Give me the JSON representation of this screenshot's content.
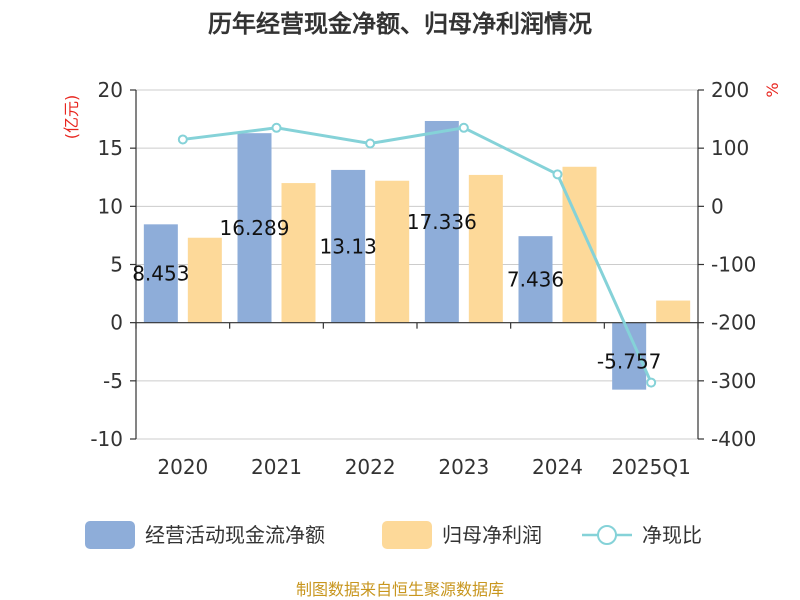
{
  "chart_data": {
    "type": "bar",
    "title": "历年经营现金净额、归母净利润情况",
    "categories": [
      "2020",
      "2021",
      "2022",
      "2023",
      "2024",
      "2025Q1"
    ],
    "series": [
      {
        "name": "经营活动现金流净额",
        "type": "bar",
        "axis": "left",
        "color": "#8eadd9",
        "values": [
          8.453,
          16.289,
          13.13,
          17.336,
          7.436,
          -5.757
        ],
        "labels": [
          "8.453",
          "16.289",
          "13.13",
          "17.336",
          "7.436",
          "-5.757"
        ]
      },
      {
        "name": "归母净利润",
        "type": "bar",
        "axis": "left",
        "color": "#fdd999",
        "values": [
          7.3,
          12.0,
          12.2,
          12.7,
          13.4,
          1.9
        ]
      },
      {
        "name": "净现比",
        "type": "line",
        "axis": "right",
        "color": "#85d2d8",
        "values": [
          115,
          135,
          108,
          135,
          55,
          -303
        ]
      }
    ],
    "left_axis": {
      "unit": "(亿元)",
      "ylim": [
        -10,
        20
      ],
      "ticks": [
        20,
        15,
        10,
        5,
        0,
        -5,
        -10
      ]
    },
    "right_axis": {
      "unit": "%",
      "ylim": [
        -400,
        200
      ],
      "ticks": [
        200,
        100,
        0,
        -100,
        -200,
        -300,
        -400
      ]
    },
    "grid": true,
    "legend": "bottom"
  },
  "source": "制图数据来自恒生聚源数据库"
}
